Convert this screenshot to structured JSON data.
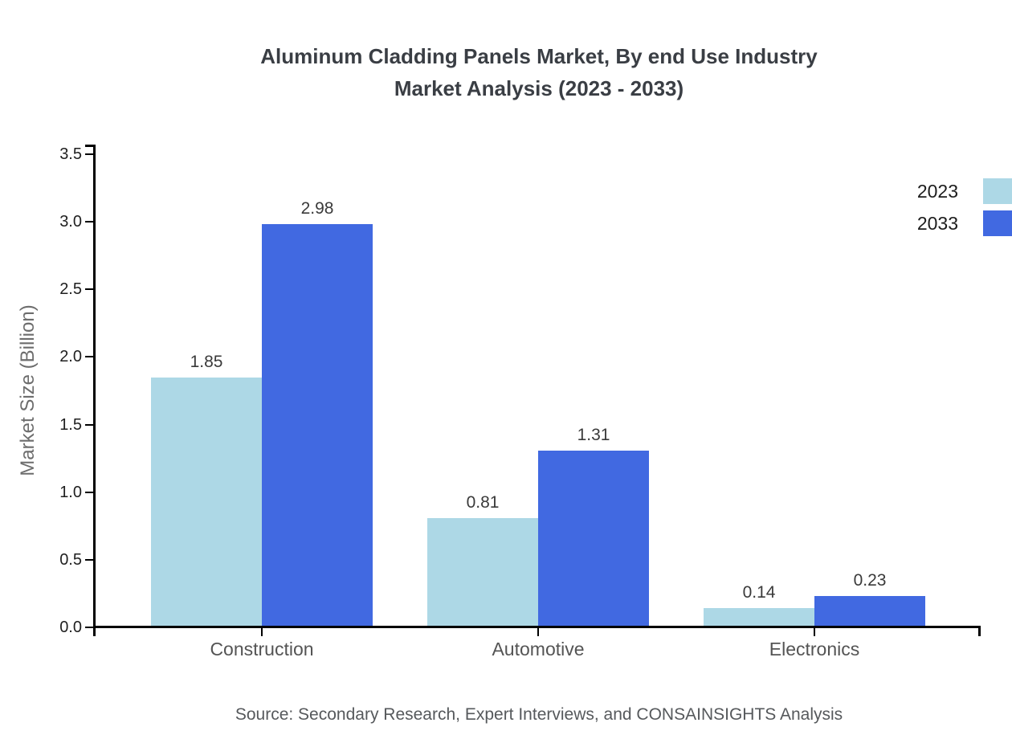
{
  "title": {
    "line1": "Aluminum Cladding Panels Market, By end Use Industry",
    "line2": "Market Analysis (2023 - 2033)"
  },
  "source_note": "Source: Secondary Research, Expert Interviews, and CONSAINSIGHTS Analysis",
  "chart_data": {
    "type": "bar",
    "title": "Aluminum Cladding Panels Market, By end Use Industry Market Analysis (2023 - 2033)",
    "categories": [
      "Construction",
      "Automotive",
      "Electronics"
    ],
    "series": [
      {
        "name": "2023",
        "color": "#ADD8E6",
        "values": [
          1.85,
          0.81,
          0.14
        ]
      },
      {
        "name": "2033",
        "color": "#4169E1",
        "values": [
          2.98,
          1.31,
          0.23
        ]
      }
    ],
    "xlabel": "",
    "ylabel": "Market Size (Billion)",
    "ylim": [
      0,
      3.5
    ],
    "ytick_step": 0.5,
    "ytick_labels": [
      "0.0",
      "0.5",
      "1.0",
      "1.5",
      "2.0",
      "2.5",
      "3.0",
      "3.5"
    ],
    "grid": false,
    "value_labels": true,
    "value_label_format": "2dp",
    "legend_position": "upper-right-outside",
    "axis_color": "#000000",
    "background_color": "#ffffff"
  },
  "legend": {
    "items": [
      {
        "label": "2023",
        "color": "#ADD8E6"
      },
      {
        "label": "2033",
        "color": "#4169E1"
      }
    ]
  }
}
